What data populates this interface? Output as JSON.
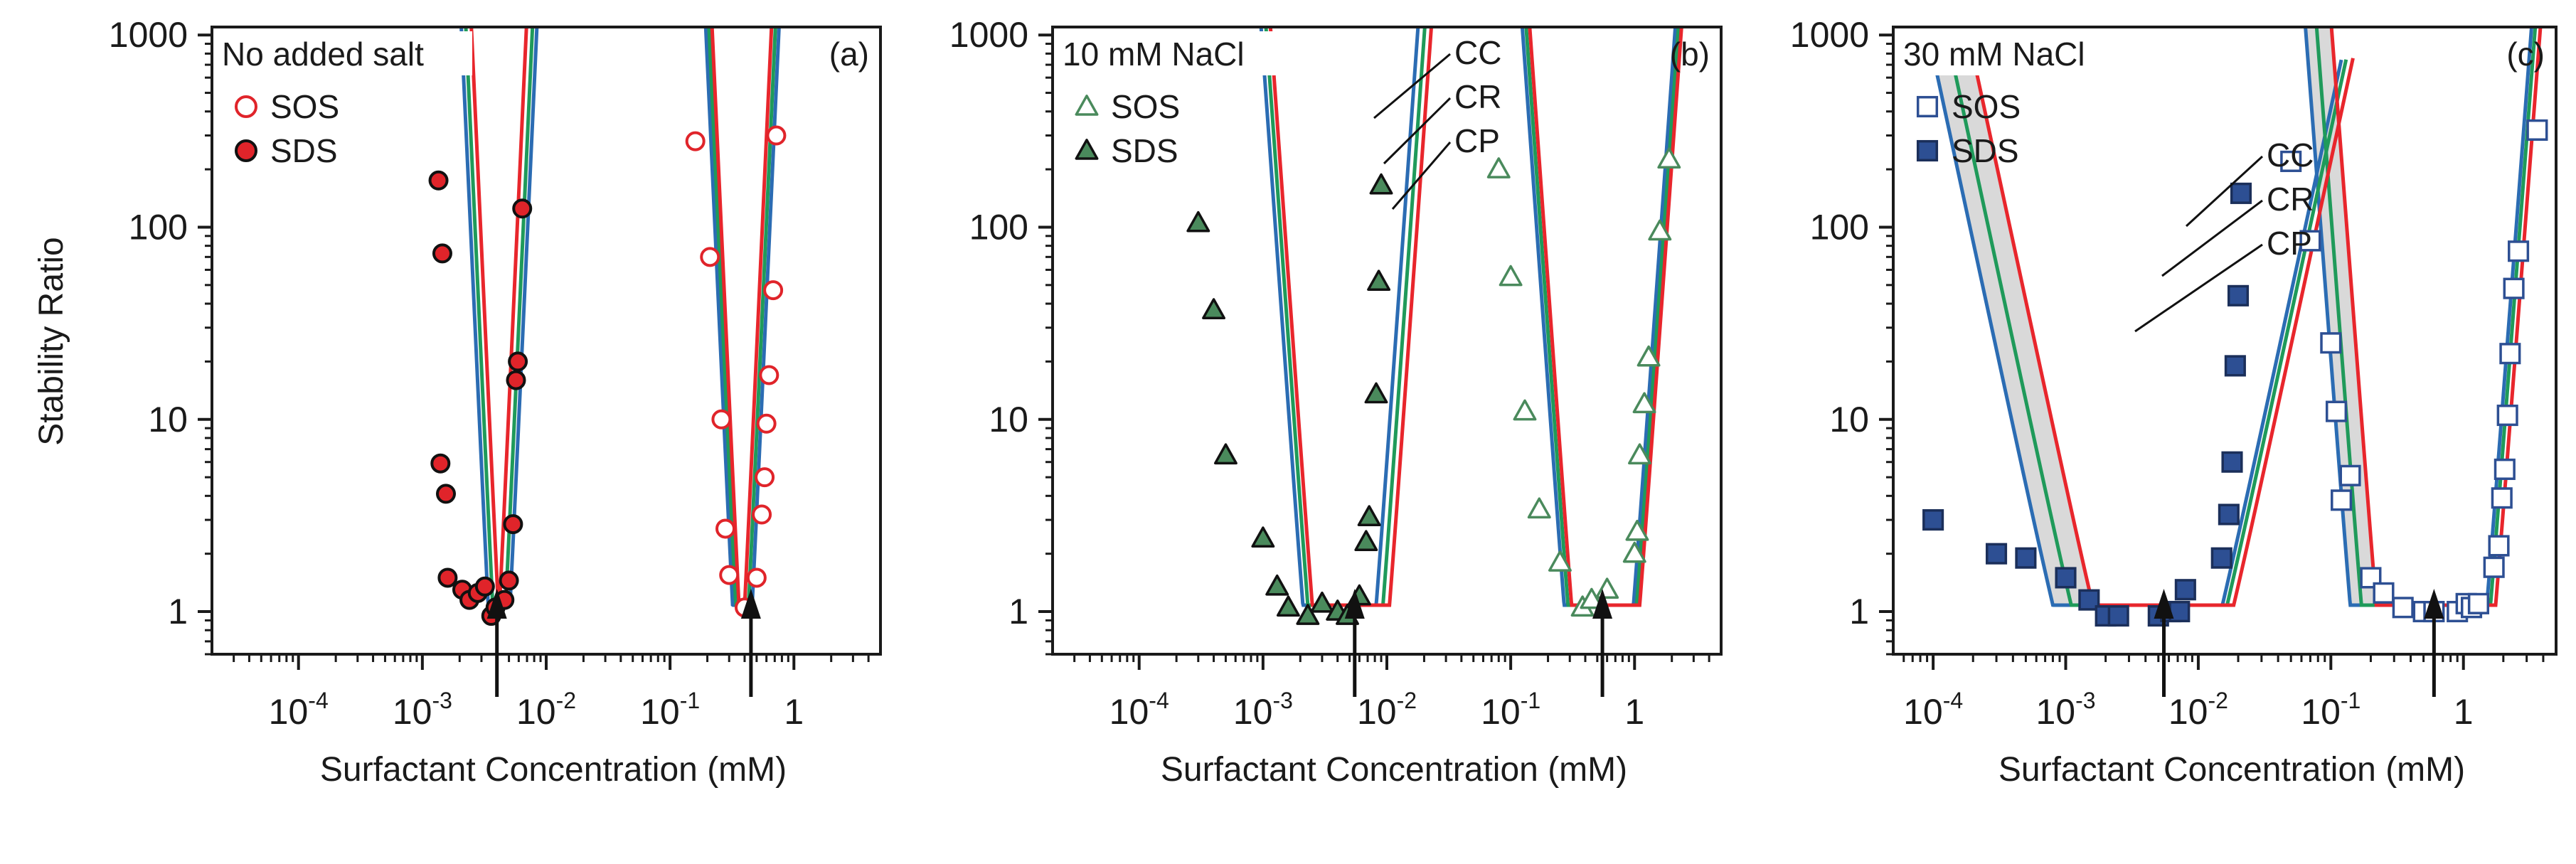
{
  "figure": {
    "ylabel": "Stability Ratio",
    "colors": {
      "CC": "#e8262c",
      "CR": "#1f9a5a",
      "CP": "#2b6cb3",
      "band": "#d9d9d9",
      "frame": "#1a1a1a",
      "red_marker": "#e0242a",
      "green_marker": "#4a8a5c",
      "blue_marker": "#2d4f93"
    }
  },
  "chart_data": [
    {
      "type": "scatter",
      "panel": "(a)",
      "title": "No added salt",
      "xlabel": "Surfactant Concentration (mM)",
      "ylabel": "Stability Ratio",
      "xscale": "log",
      "yscale": "log",
      "xlim": [
        2e-05,
        5
      ],
      "ylim": [
        0.6,
        1100
      ],
      "xticks": [
        {
          "base": "10",
          "exp": "-4",
          "value": 0.0001
        },
        {
          "base": "10",
          "exp": "-3",
          "value": 0.001
        },
        {
          "base": "10",
          "exp": "-2",
          "value": 0.01
        },
        {
          "base": "10",
          "exp": "-1",
          "value": 0.1
        },
        {
          "base": "1",
          "exp": "",
          "value": 1
        }
      ],
      "yticks": [
        {
          "label": "1",
          "value": 1
        },
        {
          "label": "10",
          "value": 10
        },
        {
          "label": "100",
          "value": 100
        },
        {
          "label": "1000",
          "value": 1000
        }
      ],
      "legend": [
        {
          "name": "SOS",
          "marker": "circle",
          "filled": false
        },
        {
          "name": "SDS",
          "marker": "circle",
          "filled": true
        }
      ],
      "arrows": [
        0.004,
        0.45
      ],
      "series": [
        {
          "name": "SDS",
          "marker": "circle",
          "filled": true,
          "color": "#e0242a",
          "x": [
            0.00135,
            0.00145,
            0.0014,
            0.00155,
            0.0016,
            0.0021,
            0.0024,
            0.0028,
            0.0032,
            0.0036,
            0.0039,
            0.0046,
            0.005,
            0.0054,
            0.0057,
            0.0059,
            0.0064
          ],
          "y": [
            175,
            73,
            5.9,
            4.1,
            1.5,
            1.3,
            1.15,
            1.25,
            1.35,
            0.95,
            1.05,
            1.15,
            1.45,
            2.85,
            16,
            20,
            125
          ]
        },
        {
          "name": "SOS",
          "marker": "circle",
          "filled": false,
          "color": "#e0242a",
          "x": [
            0.16,
            0.21,
            0.26,
            0.28,
            0.3,
            0.4,
            0.5,
            0.55,
            0.58,
            0.6,
            0.63,
            0.68,
            0.72
          ],
          "y": [
            280,
            70,
            10,
            2.7,
            1.55,
            1.05,
            1.5,
            3.2,
            5,
            9.5,
            17,
            47,
            300
          ]
        }
      ],
      "models": [
        {
          "name": "CC",
          "left_rise": 0.0041,
          "right_rise": 0.0042,
          "left_rise2": 0.36,
          "right_rise2": 0.4,
          "width": 0.22
        },
        {
          "name": "CR",
          "left_rise": 0.0037,
          "right_rise": 0.0047,
          "left_rise2": 0.34,
          "right_rise2": 0.43,
          "width": 0.22
        },
        {
          "name": "CP",
          "left_rise": 0.0034,
          "right_rise": 0.0051,
          "left_rise2": 0.32,
          "right_rise2": 0.46,
          "width": 0.22
        }
      ]
    },
    {
      "type": "scatter",
      "panel": "(b)",
      "title": "10 mM NaCl",
      "xlabel": "Surfactant Concentration (mM)",
      "ylabel": "Stability Ratio",
      "xscale": "log",
      "yscale": "log",
      "xlim": [
        2e-05,
        5
      ],
      "ylim": [
        0.6,
        1100
      ],
      "xticks": [
        {
          "base": "10",
          "exp": "-4",
          "value": 0.0001
        },
        {
          "base": "10",
          "exp": "-3",
          "value": 0.001
        },
        {
          "base": "10",
          "exp": "-2",
          "value": 0.01
        },
        {
          "base": "10",
          "exp": "-1",
          "value": 0.1
        },
        {
          "base": "1",
          "exp": "",
          "value": 1
        }
      ],
      "yticks": [
        {
          "label": "1",
          "value": 1
        },
        {
          "label": "10",
          "value": 10
        },
        {
          "label": "100",
          "value": 100
        },
        {
          "label": "1000",
          "value": 1000
        }
      ],
      "legend": [
        {
          "name": "SOS",
          "marker": "triangle",
          "filled": false
        },
        {
          "name": "SDS",
          "marker": "triangle",
          "filled": true
        }
      ],
      "curve_labels": [
        "CC",
        "CR",
        "CP"
      ],
      "arrows": [
        0.0055,
        0.55
      ],
      "series": [
        {
          "name": "SDS",
          "marker": "triangle",
          "filled": true,
          "color": "#4a8a5c",
          "x": [
            0.0003,
            0.0004,
            0.0005,
            0.001,
            0.0013,
            0.0016,
            0.0023,
            0.003,
            0.004,
            0.0048,
            0.006,
            0.0068,
            0.0072,
            0.0082,
            0.0086,
            0.009
          ],
          "y": [
            105,
            37,
            6.5,
            2.4,
            1.35,
            1.05,
            0.95,
            1.1,
            1.0,
            0.95,
            1.2,
            2.3,
            3.1,
            13.5,
            52,
            165
          ]
        },
        {
          "name": "SOS",
          "marker": "triangle",
          "filled": false,
          "color": "#4a8a5c",
          "x": [
            0.08,
            0.1,
            0.13,
            0.17,
            0.25,
            0.38,
            0.45,
            0.6,
            1.0,
            1.05,
            1.1,
            1.2,
            1.3,
            1.6,
            1.9
          ],
          "y": [
            200,
            55,
            11,
            3.4,
            1.8,
            1.05,
            1.15,
            1.3,
            2.0,
            2.6,
            6.5,
            12,
            21,
            95,
            225
          ]
        }
      ],
      "models": [
        {
          "name": "CC",
          "left_rise": 0.0025,
          "right_rise": 0.0105,
          "left_rise2": 0.31,
          "right_rise2": 1.1
        },
        {
          "name": "CR",
          "left_rise": 0.0023,
          "right_rise": 0.0093,
          "left_rise2": 0.29,
          "right_rise2": 1.04
        },
        {
          "name": "CP",
          "left_rise": 0.0021,
          "right_rise": 0.0082,
          "left_rise2": 0.27,
          "right_rise2": 0.98
        }
      ]
    },
    {
      "type": "scatter",
      "panel": "(c)",
      "title": "30 mM NaCl",
      "xlabel": "Surfactant Concentration (mM)",
      "ylabel": "Stability Ratio",
      "xscale": "log",
      "yscale": "log",
      "xlim": [
        5e-05,
        5
      ],
      "ylim": [
        0.6,
        1100
      ],
      "xticks": [
        {
          "base": "10",
          "exp": "-4",
          "value": 0.0001
        },
        {
          "base": "10",
          "exp": "-3",
          "value": 0.001
        },
        {
          "base": "10",
          "exp": "-2",
          "value": 0.01
        },
        {
          "base": "10",
          "exp": "-1",
          "value": 0.1
        },
        {
          "base": "1",
          "exp": "",
          "value": 1
        }
      ],
      "yticks": [
        {
          "label": "1",
          "value": 1
        },
        {
          "label": "10",
          "value": 10
        },
        {
          "label": "100",
          "value": 100
        },
        {
          "label": "1000",
          "value": 1000
        }
      ],
      "legend": [
        {
          "name": "SOS",
          "marker": "square",
          "filled": false
        },
        {
          "name": "SDS",
          "marker": "square",
          "filled": true
        }
      ],
      "curve_labels": [
        "CC",
        "CR",
        "CP"
      ],
      "arrows": [
        0.0055,
        0.6
      ],
      "series": [
        {
          "name": "SDS",
          "marker": "square",
          "filled": true,
          "color": "#2d4f93",
          "x": [
            0.0001,
            0.0003,
            0.0005,
            0.001,
            0.0015,
            0.002,
            0.0025,
            0.005,
            0.0062,
            0.0072,
            0.008,
            0.015,
            0.017,
            0.018,
            0.019,
            0.02,
            0.021
          ],
          "y": [
            3.0,
            2.0,
            1.9,
            1.5,
            1.15,
            0.95,
            0.95,
            0.95,
            1.0,
            1.0,
            1.3,
            1.9,
            3.2,
            6.0,
            19,
            44,
            150
          ]
        },
        {
          "name": "SOS",
          "marker": "square",
          "filled": false,
          "color": "#2d4f93",
          "x": [
            0.05,
            0.07,
            0.1,
            0.11,
            0.12,
            0.14,
            0.2,
            0.25,
            0.35,
            0.5,
            0.6,
            0.9,
            1.05,
            1.15,
            1.3,
            1.7,
            1.85,
            1.95,
            2.05,
            2.15,
            2.25,
            2.4,
            2.6,
            3.6
          ],
          "y": [
            220,
            85,
            25,
            11,
            3.8,
            5.1,
            1.5,
            1.25,
            1.05,
            1.0,
            1.0,
            1.0,
            1.1,
            1.05,
            1.1,
            1.7,
            2.2,
            3.9,
            5.5,
            10.5,
            22,
            48,
            75,
            320
          ]
        }
      ],
      "models": [
        {
          "name": "CC",
          "left_rise": 0.0016,
          "right_rise": 0.0185,
          "left_rise2": 0.22,
          "right_rise2": 1.75
        },
        {
          "name": "CR",
          "left_rise": 0.0011,
          "right_rise": 0.0165,
          "left_rise2": 0.17,
          "right_rise2": 1.6
        },
        {
          "name": "CP",
          "left_rise": 0.0008,
          "right_rise": 0.0152,
          "left_rise2": 0.14,
          "right_rise2": 1.5
        }
      ]
    }
  ]
}
